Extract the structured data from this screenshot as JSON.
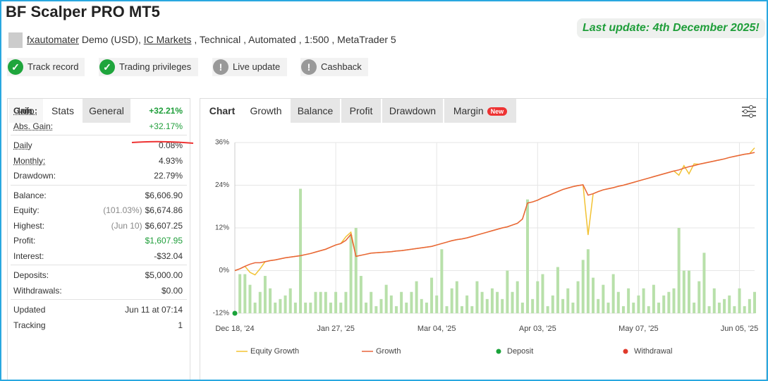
{
  "header": {
    "title": "BF Scalper PRO MT5",
    "user": "fxautomater",
    "account": "Demo (USD),",
    "broker": "IC Markets",
    "details": ", Technical , Automated , 1:500 , MetaTrader 5",
    "last_update": "Last update: 4th December 2025!"
  },
  "badges": [
    {
      "label": "Track record",
      "status": "ok"
    },
    {
      "label": "Trading privileges",
      "status": "ok"
    },
    {
      "label": "Live update",
      "status": "warn"
    },
    {
      "label": "Cashback",
      "status": "warn"
    }
  ],
  "left_tabs": [
    "Info",
    "Stats",
    "General"
  ],
  "stats": [
    [
      {
        "label": "Gain :",
        "value": "+32.21%",
        "color": "#1f9e3a",
        "bold": true,
        "underline": true
      },
      {
        "label": "Abs. Gain:",
        "value": "+32.17%",
        "color": "#1f9e3a",
        "underline": true
      }
    ],
    [
      {
        "label": "Daily",
        "value": "0.08%",
        "underline": true
      },
      {
        "label": "Monthly:",
        "value": "4.93%",
        "underline": true
      },
      {
        "label": "Drawdown:",
        "value": "22.79%"
      }
    ],
    [
      {
        "label": "Balance:",
        "value": "$6,606.90"
      },
      {
        "label": "Equity:",
        "note": "(101.03%)",
        "value": "$6,674.86"
      },
      {
        "label": "Highest:",
        "note": "(Jun 10)",
        "value": "$6,607.25"
      },
      {
        "label": "Profit:",
        "value": "$1,607.95",
        "color": "#1f9e3a"
      },
      {
        "label": "Interest:",
        "value": "-$32.04"
      }
    ],
    [
      {
        "label": "Deposits:",
        "value": "$5,000.00"
      },
      {
        "label": "Withdrawals:",
        "value": "$0.00"
      }
    ],
    [
      {
        "label": "Updated",
        "value": "Jun 11 at 07:14"
      },
      {
        "label": "Tracking",
        "value": "1"
      }
    ]
  ],
  "chart_tabs": [
    "Chart",
    "Growth",
    "Balance",
    "Profit",
    "Drawdown",
    "Margin"
  ],
  "new_badge": "New",
  "chart_data": {
    "type": "line",
    "categories": [
      "Dec 18, '24",
      null,
      null,
      null,
      null,
      null,
      null,
      null,
      null,
      null,
      null,
      null,
      null,
      null,
      null,
      null,
      null,
      null,
      null,
      null,
      "Jan 27, '25",
      null,
      null,
      null,
      null,
      null,
      null,
      null,
      null,
      null,
      null,
      null,
      null,
      null,
      null,
      null,
      null,
      null,
      null,
      null,
      "Mar 04, '25",
      null,
      null,
      null,
      null,
      null,
      null,
      null,
      null,
      null,
      null,
      null,
      null,
      null,
      null,
      null,
      null,
      null,
      null,
      null,
      "Apr 03, '25",
      null,
      null,
      null,
      null,
      null,
      null,
      null,
      null,
      null,
      null,
      null,
      null,
      null,
      null,
      null,
      null,
      null,
      null,
      null,
      "May 07, '25",
      null,
      null,
      null,
      null,
      null,
      null,
      null,
      null,
      null,
      null,
      null,
      null,
      null,
      null,
      null,
      null,
      null,
      null,
      null,
      "Jun 05, '25",
      null,
      null,
      null
    ],
    "ylim": [
      -12,
      36
    ],
    "yticks": [
      {
        "value": -12,
        "label": "-12%"
      },
      {
        "value": 0,
        "label": "0%"
      },
      {
        "value": 12,
        "label": "12%"
      },
      {
        "value": 24,
        "label": "24%"
      },
      {
        "value": 36,
        "label": "36%"
      }
    ],
    "grid": true,
    "series": [
      {
        "name": "Equity Growth",
        "color": "#f2c233",
        "values": [
          0,
          0.5,
          1.2,
          -0.5,
          -1.2,
          0.5,
          2.5,
          2.8,
          3.0,
          3.3,
          3.6,
          3.8,
          4.0,
          4.2,
          4.5,
          4.8,
          5.2,
          5.6,
          6.0,
          6.6,
          7.2,
          7.6,
          9.5,
          10.8,
          4.0,
          4.3,
          4.6,
          4.9,
          5.0,
          5.1,
          5.2,
          5.3,
          5.5,
          5.6,
          5.8,
          6.0,
          6.2,
          6.4,
          6.6,
          6.8,
          7.2,
          7.6,
          8.0,
          8.4,
          8.7,
          8.9,
          9.2,
          9.6,
          10.0,
          10.4,
          10.8,
          11.2,
          11.6,
          12.0,
          12.3,
          12.8,
          13.3,
          14.5,
          19.0,
          19.3,
          19.8,
          20.5,
          21.0,
          21.6,
          22.2,
          22.8,
          23.2,
          23.6,
          23.9,
          24.1,
          10.0,
          21.6,
          22.2,
          22.7,
          23.0,
          23.3,
          23.7,
          24.0,
          24.4,
          24.8,
          25.2,
          25.6,
          26.0,
          26.4,
          26.8,
          27.2,
          27.6,
          28.0,
          26.8,
          29.5,
          27.2,
          30.0,
          29.9,
          30.2,
          30.5,
          30.8,
          31.1,
          31.4,
          31.8,
          32.1,
          32.4,
          32.7,
          32.9,
          34.5
        ]
      },
      {
        "name": "Growth",
        "color": "#e8643a",
        "values": [
          0,
          0.5,
          1.2,
          1.8,
          2.2,
          2.2,
          2.5,
          2.8,
          3.0,
          3.3,
          3.6,
          3.8,
          4.0,
          4.2,
          4.5,
          4.8,
          5.2,
          5.6,
          6.0,
          6.6,
          7.2,
          7.6,
          8.5,
          10.2,
          4.0,
          4.3,
          4.6,
          4.9,
          5.0,
          5.1,
          5.2,
          5.3,
          5.5,
          5.6,
          5.8,
          6.0,
          6.2,
          6.4,
          6.6,
          6.8,
          7.2,
          7.6,
          8.0,
          8.4,
          8.7,
          8.9,
          9.2,
          9.6,
          10.0,
          10.4,
          10.8,
          11.2,
          11.6,
          12.0,
          12.3,
          12.8,
          13.3,
          14.5,
          19.0,
          19.3,
          19.8,
          20.5,
          21.0,
          21.6,
          22.2,
          22.8,
          23.2,
          23.6,
          23.9,
          24.1,
          21.2,
          21.6,
          22.2,
          22.7,
          23.0,
          23.3,
          23.7,
          24.0,
          24.4,
          24.8,
          25.2,
          25.6,
          26.0,
          26.4,
          26.8,
          27.2,
          27.6,
          28.0,
          28.3,
          28.8,
          29.2,
          29.5,
          29.9,
          30.2,
          30.5,
          30.8,
          31.1,
          31.4,
          31.8,
          32.1,
          32.4,
          32.7,
          32.9,
          33.2
        ]
      },
      {
        "name": "Deposit",
        "type": "scatter",
        "color": "#1aa33a",
        "values": [
          -12,
          null,
          null,
          null,
          null,
          null,
          null,
          null,
          null,
          null,
          null,
          null,
          null,
          null,
          null,
          null,
          null,
          null,
          null,
          null,
          null,
          null,
          null,
          null,
          null,
          null,
          null,
          null,
          null,
          null,
          null,
          null,
          null,
          null,
          null,
          null,
          null,
          null,
          null,
          null,
          null,
          null,
          null,
          null,
          null,
          null,
          null,
          null,
          null,
          null,
          null,
          null,
          null,
          null,
          null,
          null,
          null,
          null,
          null,
          null,
          null,
          null,
          null,
          null,
          null,
          null,
          null,
          null,
          null,
          null,
          null,
          null,
          null,
          null,
          null,
          null,
          null,
          null,
          null,
          null,
          null,
          null,
          null,
          null,
          null,
          null,
          null,
          null,
          null,
          null,
          null,
          null,
          null,
          null,
          null,
          null,
          null,
          null,
          null,
          null,
          null,
          null,
          null,
          null
        ]
      },
      {
        "name": "Withdrawal",
        "type": "scatter",
        "color": "#e0392b"
      }
    ],
    "bars": {
      "color": "#b8e0aa",
      "values": [
        null,
        -1,
        -1,
        -4,
        -9,
        -6,
        -1.5,
        -5,
        -9,
        -8,
        -7,
        -5,
        -9,
        23,
        -9,
        -9,
        -6,
        -6,
        -6,
        -9,
        -6,
        -9,
        -6,
        10,
        12,
        -1.5,
        -9,
        -6,
        -10,
        -8,
        -4,
        -7,
        -10,
        -6,
        -9,
        -6,
        -3,
        -8,
        -9,
        -2,
        -7,
        6,
        -10,
        -5,
        -3,
        -10,
        -7,
        -10,
        -3,
        -6,
        -8,
        -5,
        -6,
        -8,
        0,
        -6,
        -3,
        -9,
        20,
        -8,
        -3,
        -1,
        -10,
        -7,
        1,
        -8,
        -5,
        -9,
        -3,
        3,
        6,
        -2,
        -8,
        -4,
        -9,
        -1,
        -6,
        -10,
        -5,
        -9,
        -7,
        -5,
        -10,
        -4,
        -9,
        -7,
        -6,
        -5,
        12,
        0,
        0,
        -9,
        -3,
        5,
        -10,
        -5,
        -9,
        -8,
        -7,
        -10,
        -5,
        -10,
        -8,
        -6
      ]
    }
  }
}
